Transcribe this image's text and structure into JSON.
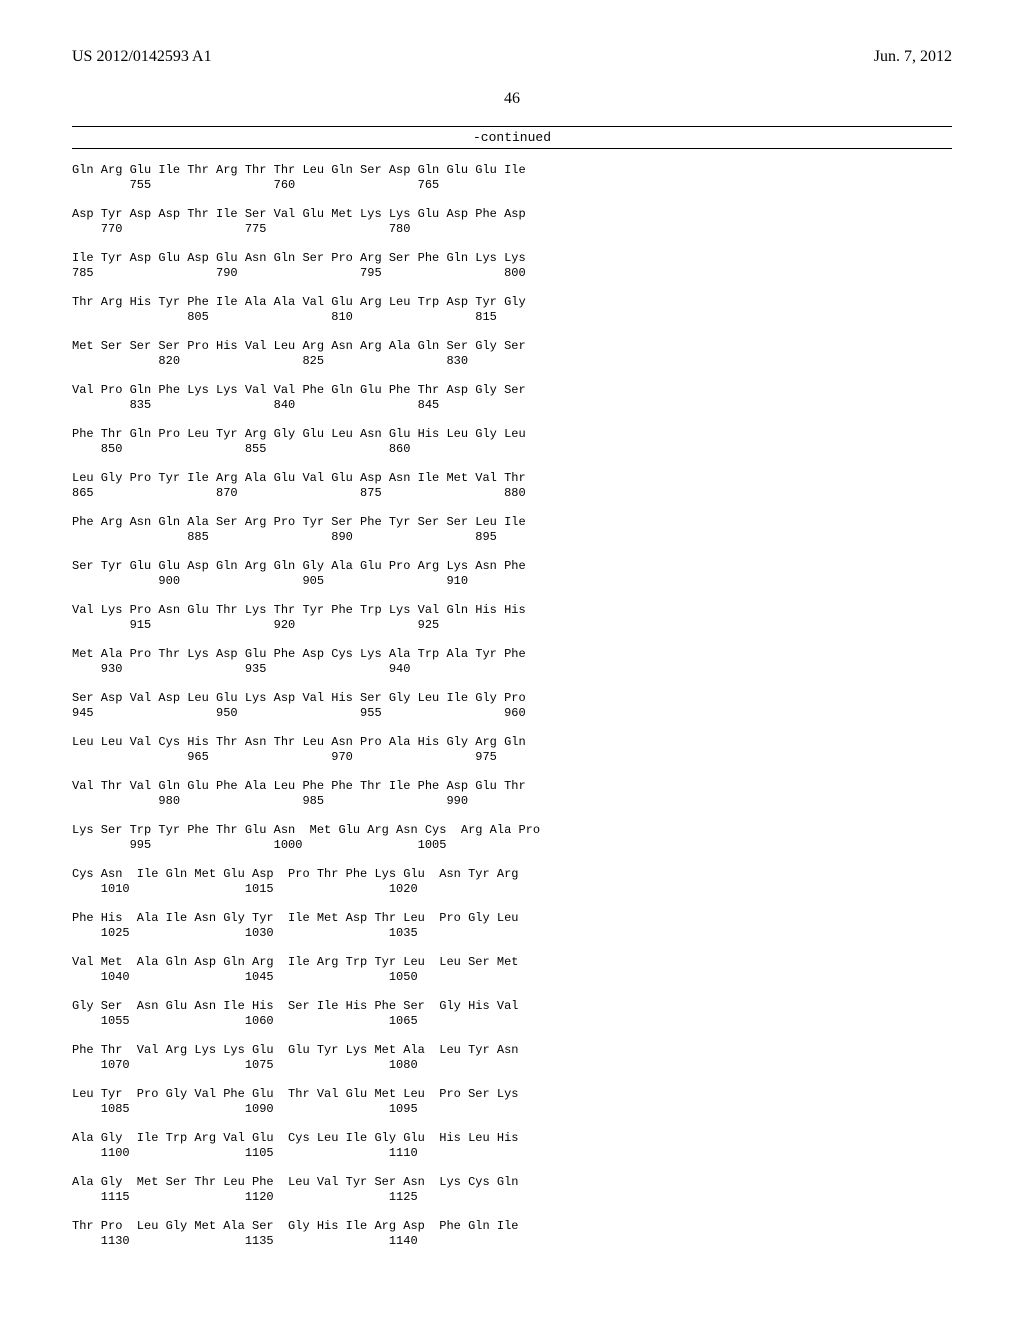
{
  "header": {
    "pub_number": "US 2012/0142593 A1",
    "pub_date": "Jun. 7, 2012"
  },
  "page_number": "46",
  "continued_label": "-continued",
  "sequence_blocks": [
    {
      "aa": "Gln Arg Glu Ile Thr Arg Thr Thr Leu Gln Ser Asp Gln Glu Glu Ile",
      "nm": "        755                 760                 765"
    },
    {
      "aa": "Asp Tyr Asp Asp Thr Ile Ser Val Glu Met Lys Lys Glu Asp Phe Asp",
      "nm": "    770                 775                 780"
    },
    {
      "aa": "Ile Tyr Asp Glu Asp Glu Asn Gln Ser Pro Arg Ser Phe Gln Lys Lys",
      "nm": "785                 790                 795                 800"
    },
    {
      "aa": "Thr Arg His Tyr Phe Ile Ala Ala Val Glu Arg Leu Trp Asp Tyr Gly",
      "nm": "                805                 810                 815"
    },
    {
      "aa": "Met Ser Ser Ser Pro His Val Leu Arg Asn Arg Ala Gln Ser Gly Ser",
      "nm": "            820                 825                 830"
    },
    {
      "aa": "Val Pro Gln Phe Lys Lys Val Val Phe Gln Glu Phe Thr Asp Gly Ser",
      "nm": "        835                 840                 845"
    },
    {
      "aa": "Phe Thr Gln Pro Leu Tyr Arg Gly Glu Leu Asn Glu His Leu Gly Leu",
      "nm": "    850                 855                 860"
    },
    {
      "aa": "Leu Gly Pro Tyr Ile Arg Ala Glu Val Glu Asp Asn Ile Met Val Thr",
      "nm": "865                 870                 875                 880"
    },
    {
      "aa": "Phe Arg Asn Gln Ala Ser Arg Pro Tyr Ser Phe Tyr Ser Ser Leu Ile",
      "nm": "                885                 890                 895"
    },
    {
      "aa": "Ser Tyr Glu Glu Asp Gln Arg Gln Gly Ala Glu Pro Arg Lys Asn Phe",
      "nm": "            900                 905                 910"
    },
    {
      "aa": "Val Lys Pro Asn Glu Thr Lys Thr Tyr Phe Trp Lys Val Gln His His",
      "nm": "        915                 920                 925"
    },
    {
      "aa": "Met Ala Pro Thr Lys Asp Glu Phe Asp Cys Lys Ala Trp Ala Tyr Phe",
      "nm": "    930                 935                 940"
    },
    {
      "aa": "Ser Asp Val Asp Leu Glu Lys Asp Val His Ser Gly Leu Ile Gly Pro",
      "nm": "945                 950                 955                 960"
    },
    {
      "aa": "Leu Leu Val Cys His Thr Asn Thr Leu Asn Pro Ala His Gly Arg Gln",
      "nm": "                965                 970                 975"
    },
    {
      "aa": "Val Thr Val Gln Glu Phe Ala Leu Phe Phe Thr Ile Phe Asp Glu Thr",
      "nm": "            980                 985                 990"
    },
    {
      "aa": "Lys Ser Trp Tyr Phe Thr Glu Asn  Met Glu Arg Asn Cys  Arg Ala Pro",
      "nm": "        995                 1000                1005"
    },
    {
      "aa": "Cys Asn  Ile Gln Met Glu Asp  Pro Thr Phe Lys Glu  Asn Tyr Arg",
      "nm": "    1010                1015                1020"
    },
    {
      "aa": "Phe His  Ala Ile Asn Gly Tyr  Ile Met Asp Thr Leu  Pro Gly Leu",
      "nm": "    1025                1030                1035"
    },
    {
      "aa": "Val Met  Ala Gln Asp Gln Arg  Ile Arg Trp Tyr Leu  Leu Ser Met",
      "nm": "    1040                1045                1050"
    },
    {
      "aa": "Gly Ser  Asn Glu Asn Ile His  Ser Ile His Phe Ser  Gly His Val",
      "nm": "    1055                1060                1065"
    },
    {
      "aa": "Phe Thr  Val Arg Lys Lys Glu  Glu Tyr Lys Met Ala  Leu Tyr Asn",
      "nm": "    1070                1075                1080"
    },
    {
      "aa": "Leu Tyr  Pro Gly Val Phe Glu  Thr Val Glu Met Leu  Pro Ser Lys",
      "nm": "    1085                1090                1095"
    },
    {
      "aa": "Ala Gly  Ile Trp Arg Val Glu  Cys Leu Ile Gly Glu  His Leu His",
      "nm": "    1100                1105                1110"
    },
    {
      "aa": "Ala Gly  Met Ser Thr Leu Phe  Leu Val Tyr Ser Asn  Lys Cys Gln",
      "nm": "    1115                1120                1125"
    },
    {
      "aa": "Thr Pro  Leu Gly Met Ala Ser  Gly His Ile Arg Asp  Phe Gln Ile",
      "nm": "    1130                1135                1140"
    }
  ]
}
